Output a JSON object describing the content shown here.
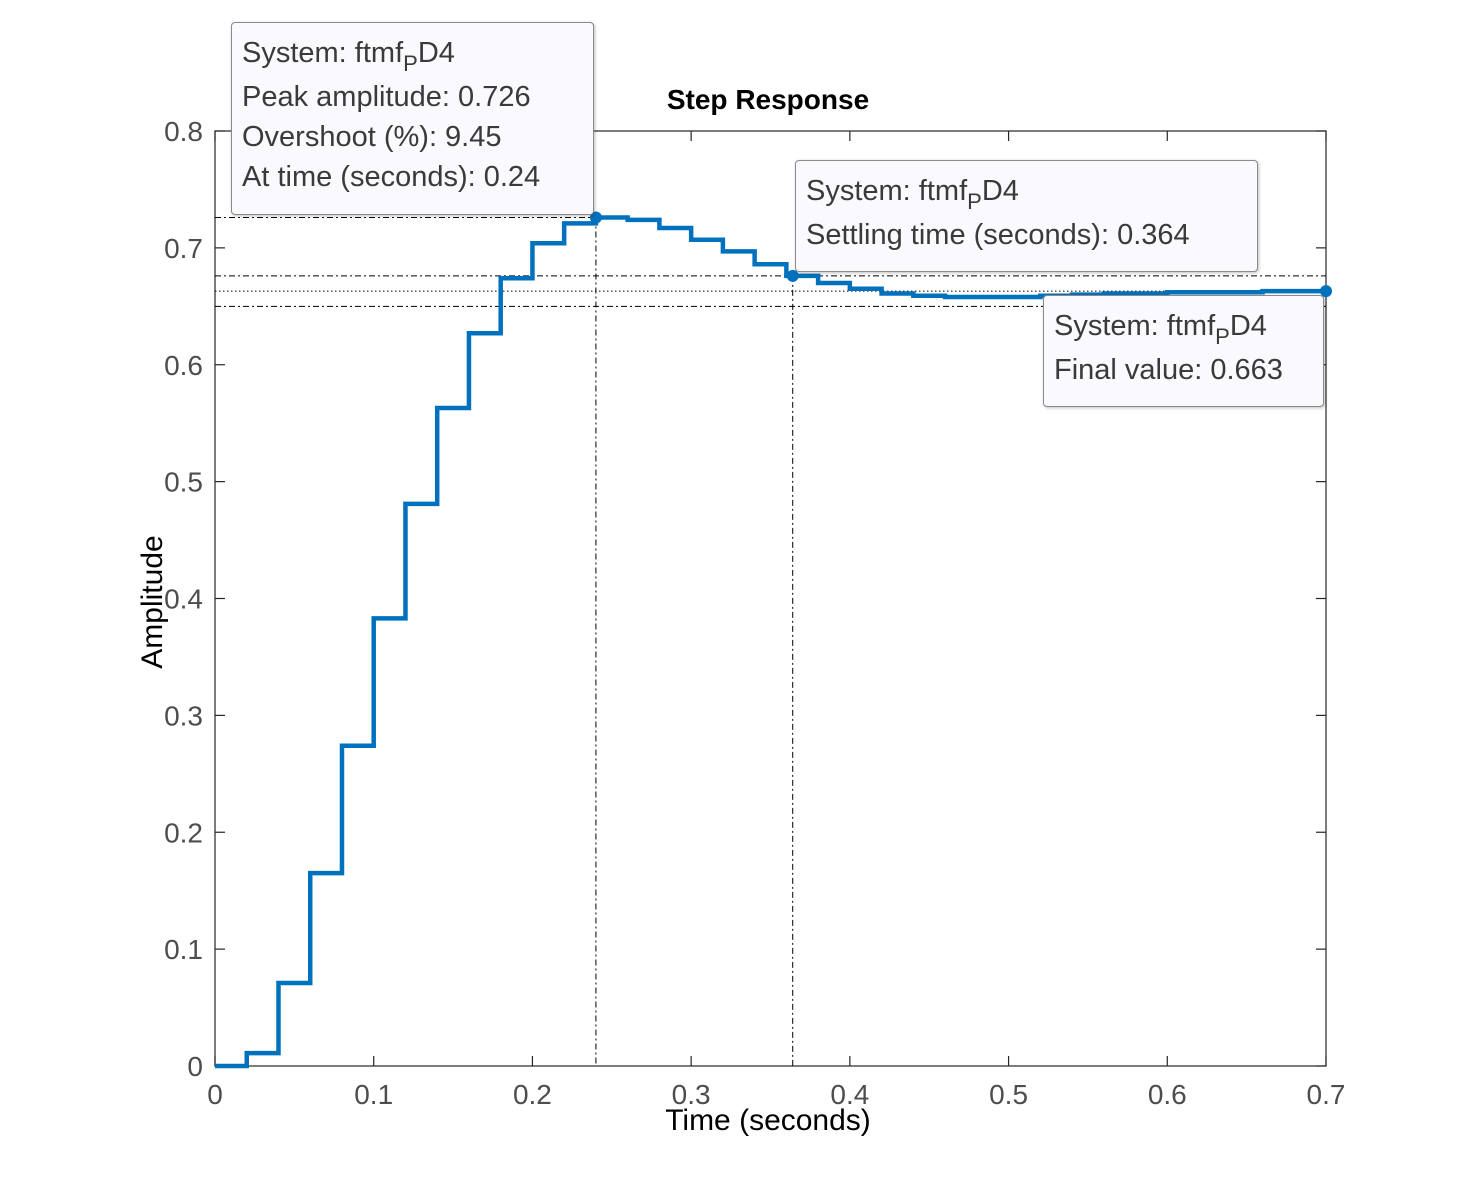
{
  "chart_data": {
    "type": "line",
    "title": "Step Response",
    "xlabel": "Time (seconds)",
    "ylabel": "Amplitude",
    "xlim": [
      0,
      0.7
    ],
    "ylim": [
      0,
      0.8
    ],
    "xticks": [
      0,
      0.1,
      0.2,
      0.3,
      0.4,
      0.5,
      0.6,
      0.7
    ],
    "xtick_labels": [
      "0",
      "0.1",
      "0.2",
      "0.3",
      "0.4",
      "0.5",
      "0.6",
      "0.7"
    ],
    "yticks": [
      0,
      0.1,
      0.2,
      0.3,
      0.4,
      0.5,
      0.6,
      0.7,
      0.8
    ],
    "ytick_labels": [
      "0",
      "0.1",
      "0.2",
      "0.3",
      "0.4",
      "0.5",
      "0.6",
      "0.7",
      "0.8"
    ],
    "grid": false,
    "series": [
      {
        "step_style": "stairs",
        "color": "#0072bd",
        "x": [
          0,
          0.02,
          0.04,
          0.06,
          0.08,
          0.1,
          0.12,
          0.14,
          0.16,
          0.18,
          0.2,
          0.22,
          0.24,
          0.26,
          0.28,
          0.3,
          0.32,
          0.34,
          0.36,
          0.38,
          0.4,
          0.42,
          0.44,
          0.46,
          0.48,
          0.5,
          0.52,
          0.54,
          0.56,
          0.58,
          0.6,
          0.62,
          0.64,
          0.66,
          0.68,
          0.7
        ],
        "y": [
          0,
          0.011,
          0.071,
          0.165,
          0.274,
          0.383,
          0.481,
          0.563,
          0.627,
          0.674,
          0.704,
          0.721,
          0.726,
          0.724,
          0.717,
          0.707,
          0.697,
          0.686,
          0.676,
          0.67,
          0.665,
          0.661,
          0.659,
          0.658,
          0.658,
          0.658,
          0.659,
          0.66,
          0.661,
          0.661,
          0.662,
          0.662,
          0.662,
          0.663,
          0.663,
          0.663
        ]
      }
    ],
    "reference_lines": {
      "final_value": 0.663,
      "settling_band_upper": 0.676,
      "settling_band_lower": 0.65,
      "peak_time": 0.24,
      "peak_amplitude": 0.726,
      "settling_time": 0.364
    },
    "markers": [
      {
        "x": 0.24,
        "y": 0.726
      },
      {
        "x": 0.364,
        "y": 0.676
      },
      {
        "x": 0.7,
        "y": 0.663
      }
    ],
    "annotations": {
      "peak": {
        "system_prefix": "System: ftmf",
        "system_sub": "P",
        "system_suffix": "D4",
        "line1": "Peak amplitude: 0.726",
        "line2": "Overshoot (%): 9.45",
        "line3": "At time (seconds): 0.24"
      },
      "settling": {
        "system_prefix": "System: ftmf",
        "system_sub": "P",
        "system_suffix": "D4",
        "line1": "Settling time (seconds): 0.364"
      },
      "final": {
        "system_prefix": "System: ftmf",
        "system_sub": "P",
        "system_suffix": "D4",
        "line1": "Final value: 0.663"
      }
    }
  }
}
